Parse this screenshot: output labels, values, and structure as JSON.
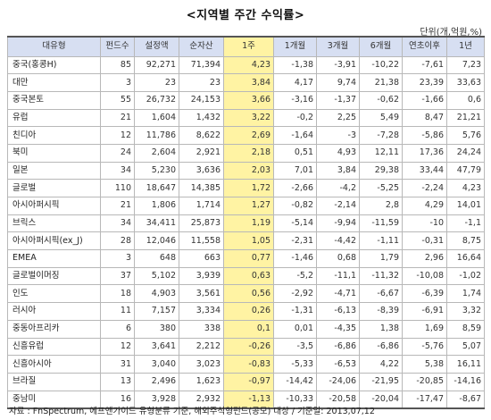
{
  "title": "<지역별 주간 수익률>",
  "unit": "단위(개,억원,%)",
  "columns": [
    "대유형",
    "펀드수",
    "설정액",
    "순자산",
    "1주",
    "1개월",
    "3개월",
    "6개월",
    "연초이후",
    "1년"
  ],
  "highlight_column": "1주",
  "rows": [
    [
      "중국(홍콩H)",
      "85",
      "92,271",
      "71,394",
      "4,23",
      "-1,38",
      "-3,91",
      "-10,22",
      "-7,61",
      "7,23"
    ],
    [
      "대만",
      "3",
      "23",
      "23",
      "3,84",
      "4,17",
      "9,74",
      "21,38",
      "23,39",
      "33,63"
    ],
    [
      "중국본토",
      "55",
      "26,732",
      "24,153",
      "3,66",
      "-3,16",
      "-1,37",
      "-0,62",
      "-1,66",
      "0,6"
    ],
    [
      "유럽",
      "21",
      "1,604",
      "1,432",
      "3,22",
      "-0,2",
      "2,25",
      "5,49",
      "8,47",
      "21,21"
    ],
    [
      "친디아",
      "12",
      "11,786",
      "8,622",
      "2,69",
      "-1,64",
      "-3",
      "-7,28",
      "-5,86",
      "5,76"
    ],
    [
      "북미",
      "24",
      "2,604",
      "2,921",
      "2,18",
      "0,51",
      "4,93",
      "12,11",
      "17,36",
      "24,24"
    ],
    [
      "일본",
      "34",
      "5,230",
      "3,636",
      "2,03",
      "7,01",
      "3,84",
      "29,38",
      "33,44",
      "47,79"
    ],
    [
      "글로벌",
      "110",
      "18,647",
      "14,385",
      "1,72",
      "-2,66",
      "-4,2",
      "-5,25",
      "-2,24",
      "4,23"
    ],
    [
      "아시아퍼시픽",
      "21",
      "1,806",
      "1,714",
      "1,27",
      "-0,82",
      "-2,14",
      "2,8",
      "4,29",
      "14,01"
    ],
    [
      "브릭스",
      "34",
      "34,411",
      "25,873",
      "1,19",
      "-5,14",
      "-9,94",
      "-11,59",
      "-10",
      "-1,1"
    ],
    [
      "아시아퍼시픽(ex_J)",
      "28",
      "12,046",
      "11,558",
      "1,05",
      "-2,31",
      "-4,42",
      "-1,11",
      "-0,31",
      "8,75"
    ],
    [
      "EMEA",
      "3",
      "648",
      "663",
      "0,77",
      "-1,46",
      "0,68",
      "1,79",
      "2,96",
      "16,64"
    ],
    [
      "글로벌이머징",
      "37",
      "5,102",
      "3,939",
      "0,63",
      "-5,2",
      "-11,1",
      "-11,32",
      "-10,08",
      "-1,02"
    ],
    [
      "인도",
      "18",
      "4,903",
      "3,561",
      "0,56",
      "-2,92",
      "-4,71",
      "-6,67",
      "-6,39",
      "1,74"
    ],
    [
      "러시아",
      "11",
      "7,157",
      "3,334",
      "0,26",
      "-1,31",
      "-6,13",
      "-8,39",
      "-6,91",
      "3,32"
    ],
    [
      "중동아프리카",
      "6",
      "380",
      "338",
      "0,1",
      "0,01",
      "-4,35",
      "1,38",
      "1,69",
      "8,59"
    ],
    [
      "신흥유럽",
      "12",
      "3,641",
      "2,212",
      "-0,26",
      "-3,5",
      "-6,86",
      "-6,86",
      "-5,76",
      "5,07"
    ],
    [
      "신흥아시아",
      "31",
      "3,040",
      "3,023",
      "-0,83",
      "-5,33",
      "-6,53",
      "4,22",
      "5,38",
      "16,11"
    ],
    [
      "브라질",
      "13",
      "2,496",
      "1,623",
      "-0,97",
      "-14,42",
      "-24,06",
      "-21,95",
      "-20,85",
      "-14,16"
    ],
    [
      "중남미",
      "16",
      "3,928",
      "2,932",
      "-1,13",
      "-10,33",
      "-20,58",
      "-20,04",
      "-17,47",
      "-8,67"
    ]
  ],
  "source": "자료 : FnSpectrum, 에프앤가이드 유형분류 기준, 해외주식형펀드(공모) 대상 / 기준일: 2013,07,12",
  "colors": {
    "header_bg": "#d7dff2",
    "highlight_bg": "#fff3a3",
    "border": "#b8b8b8"
  }
}
